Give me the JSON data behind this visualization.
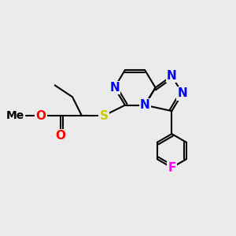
{
  "bg_color": "#ebebeb",
  "bond_color": "#000000",
  "bond_width": 1.5,
  "atom_colors": {
    "O": "#ff0000",
    "N": "#0000ff",
    "S": "#cccc00",
    "F": "#ff00ff",
    "C": "#000000"
  },
  "font_size_atom": 11,
  "font_size_me": 10
}
